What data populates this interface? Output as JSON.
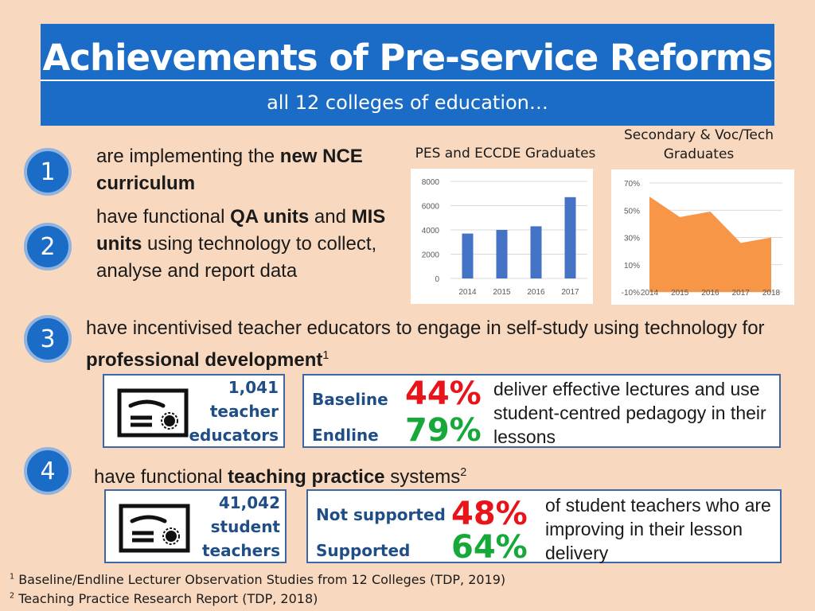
{
  "header": {
    "title": "Achievements of Pre-service Reforms",
    "subtitle": "all 12 colleges of education…",
    "color": "#1a6cc6"
  },
  "items": [
    {
      "number": "1",
      "text_parts": [
        {
          "t": "are implementing the ",
          "b": false
        },
        {
          "t": "new NCE curriculum",
          "b": true
        }
      ]
    },
    {
      "number": "2",
      "text_parts": [
        {
          "t": "have functional ",
          "b": false
        },
        {
          "t": "QA units",
          "b": true
        },
        {
          "t": " and ",
          "b": false
        },
        {
          "t": "MIS units",
          "b": true
        },
        {
          "t": " using technology to collect, analyse and report data",
          "b": false
        }
      ]
    },
    {
      "number": "3",
      "text_parts": [
        {
          "t": "have incentivised teacher educators to engage in self-study using technology for ",
          "b": false
        },
        {
          "t": "professional development",
          "b": true
        },
        {
          "t": "1",
          "sup": true
        }
      ]
    },
    {
      "number": "4",
      "text_parts": [
        {
          "t": "have functional ",
          "b": false
        },
        {
          "t": "teaching practice",
          "b": true
        },
        {
          "t": " systems",
          "b": false
        },
        {
          "t": "2",
          "sup": true
        }
      ]
    }
  ],
  "chart_data": [
    {
      "type": "bar",
      "title": "PES and ECCDE Graduates",
      "categories": [
        "2014",
        "2015",
        "2016",
        "2017"
      ],
      "values": [
        3700,
        4000,
        4300,
        6700
      ],
      "yticks": [
        "0",
        "2000",
        "4000",
        "6000",
        "8000"
      ],
      "ylim": [
        0,
        8000
      ],
      "color": "#4472c4",
      "grid": true
    },
    {
      "type": "area",
      "title": "Secondary & Voc/Tech Graduates",
      "categories": [
        "2014",
        "2015",
        "2016",
        "2017",
        "2018"
      ],
      "values": [
        60,
        45,
        49,
        26,
        30
      ],
      "yticks": [
        "-10%",
        "10%",
        "30%",
        "50%",
        "70%"
      ],
      "ylim": [
        -10,
        70
      ],
      "color": "#f79646",
      "grid": true
    }
  ],
  "stats3": {
    "count_lines": [
      "1,041",
      "teacher",
      "educators"
    ],
    "baseline_label": "Baseline",
    "baseline_value": "44%",
    "endline_label": "Endline",
    "endline_value": "79%",
    "description": "deliver effective lectures and use student-centred pedagogy in their lessons",
    "baseline_color": "#e8141a",
    "endline_color": "#17a83a"
  },
  "stats4": {
    "count_lines": [
      "41,042",
      "student",
      "teachers"
    ],
    "baseline_label": "Not supported",
    "baseline_value": "48%",
    "endline_label": "Supported",
    "endline_value": "64%",
    "description": "of student teachers who are improving in their lesson delivery",
    "baseline_color": "#e8141a",
    "endline_color": "#17a83a"
  },
  "footnotes": [
    {
      "num": "1",
      "text": "Baseline/Endline Lecturer Observation Studies from 12 Colleges (TDP, 2019)"
    },
    {
      "num": "2",
      "text": "Teaching Practice Research Report (TDP, 2018)"
    }
  ]
}
